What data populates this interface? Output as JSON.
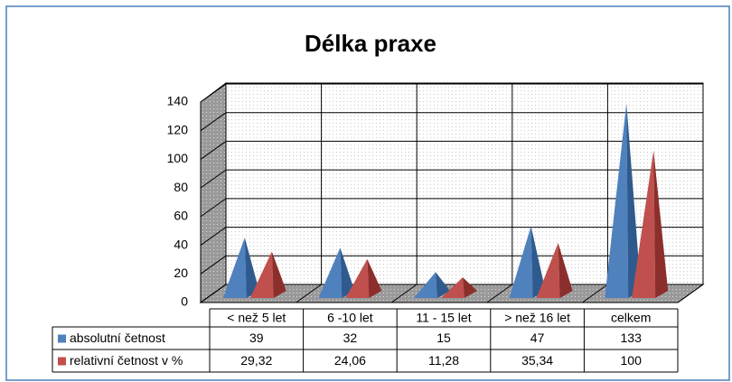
{
  "chart_data": {
    "type": "pyramid3d",
    "title": "Délka praxe",
    "categories": [
      "< než 5 let",
      "6 -10 let",
      "11 - 15 let",
      "> než 16 let",
      "celkem"
    ],
    "series": [
      {
        "name": "absolutní četnost",
        "color": "#4f81bd",
        "values": [
          39,
          32,
          15,
          47,
          133
        ]
      },
      {
        "name": "relativní četnost v %",
        "color": "#c0504d",
        "values": [
          29.32,
          24.06,
          11.28,
          35.34,
          100
        ],
        "value_labels": [
          "29,32",
          "24,06",
          "11,28",
          "35,34",
          "100"
        ]
      }
    ],
    "ylim": [
      0,
      140
    ],
    "yticks": [
      0,
      20,
      40,
      60,
      80,
      100,
      120,
      140
    ],
    "grid": true
  }
}
